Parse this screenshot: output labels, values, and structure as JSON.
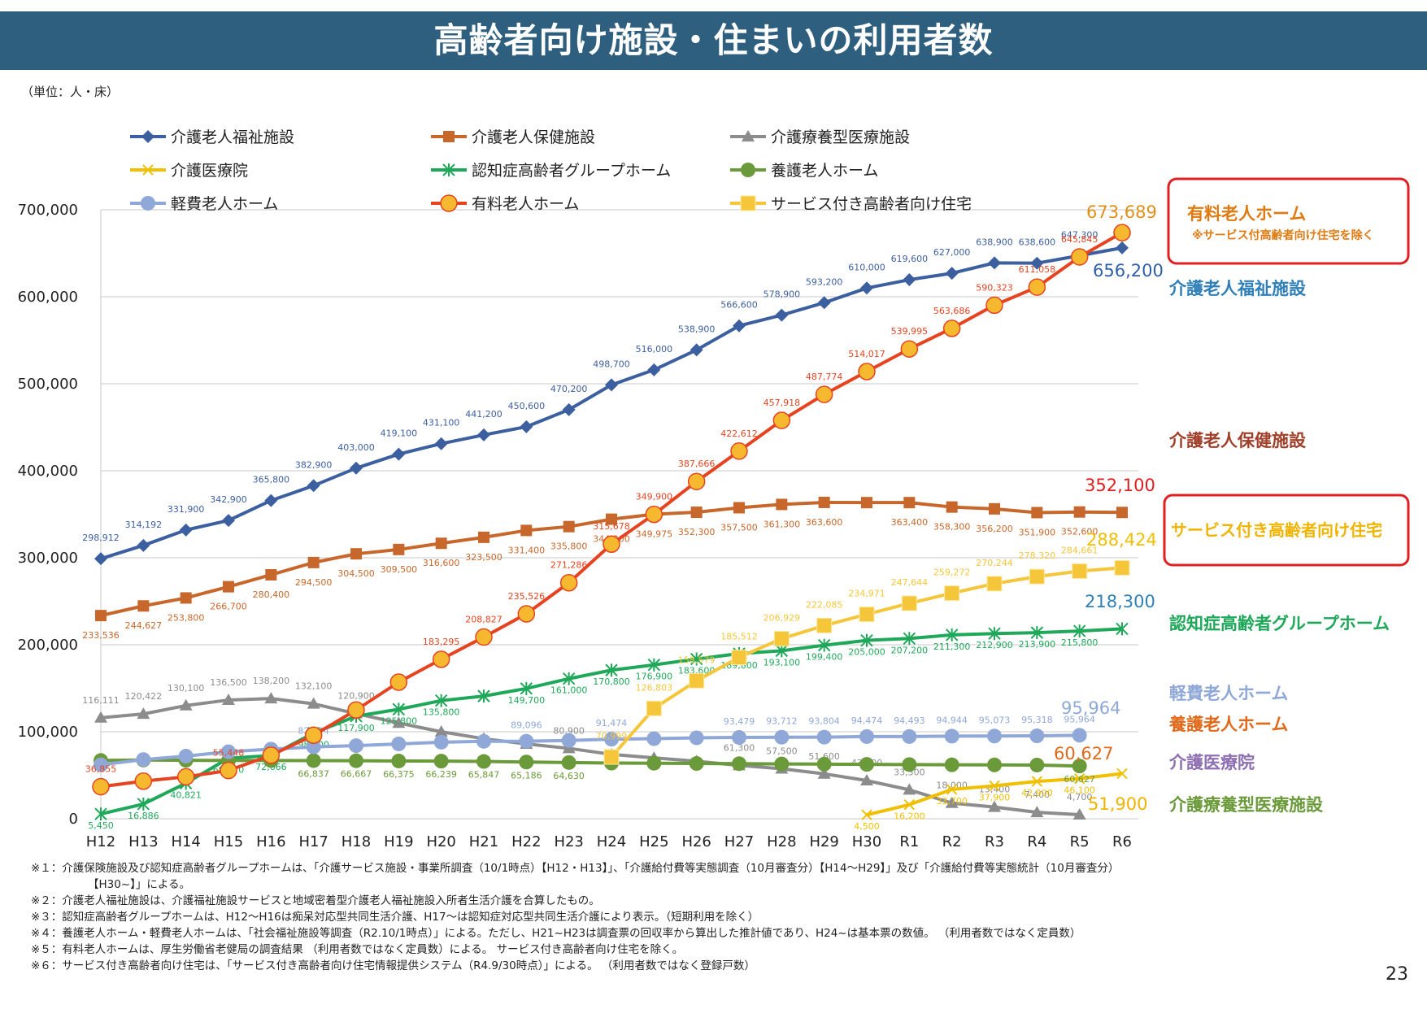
{
  "page": {
    "title": "高齢者向け施設・住まいの利用者数",
    "unit": "（単位：人・床）",
    "page_number": "23",
    "footnotes": [
      "※１：介護保険施設及び認知症高齢者グループホームは、「介護サービス施設・事業所調査（10/1時点）【H12・H13】」、「介護給付費等実態調査（10月審査分）【H14～H29】」及び「介護給付費等実態統計（10月審査分）",
      "【H30~】」による。",
      "※２：介護老人福祉施設は、介護福祉施設サービスと地域密着型介護老人福祉施設入所者生活介護を合算したもの。",
      "※３：認知症高齢者グループホームは、H12～H16は痴呆対応型共同生活介護、H17～は認知症対応型共同生活介護により表示。（短期利用を除く）",
      "※４：養護老人ホーム・軽費老人ホームは、「社会福祉施設等調査（R2.10/1時点）」による。ただし、H21~H23は調査票の回収率から算出した推計値であり、H24~は基本票の数値。 （利用者数ではなく定員数）",
      "※５：有料老人ホームは、厚生労働省老健局の調査結果 （利用者数ではなく定員数）による。 サービス付き高齢者向け住宅を除く。",
      "※６：サービス付き高齢者向け住宅は、「サービス付き高齢者向け住宅情報提供システム（R4.9/30時点）」による。 （利用者数ではなく登録戸数）"
    ]
  },
  "chart_data": {
    "type": "line",
    "categories": [
      "H12",
      "H13",
      "H14",
      "H15",
      "H16",
      "H17",
      "H18",
      "H19",
      "H20",
      "H21",
      "H22",
      "H23",
      "H24",
      "H25",
      "H26",
      "H27",
      "H28",
      "H29",
      "H30",
      "R1",
      "R2",
      "R3",
      "R4",
      "R5",
      "R6"
    ],
    "ylim": [
      0,
      700000
    ],
    "yticks": [
      0,
      100000,
      200000,
      300000,
      400000,
      500000,
      600000,
      700000
    ],
    "ytick_labels": [
      "0",
      "100,000",
      "200,000",
      "300,000",
      "400,000",
      "500,000",
      "600,000",
      "700,000"
    ],
    "grid": true,
    "legend_position": "top",
    "series": [
      {
        "name": "介護老人福祉施設",
        "color": "#3c5fa0",
        "marker": "diamond",
        "values": [
          298912,
          314192,
          331900,
          342900,
          365800,
          382900,
          403000,
          419100,
          431100,
          441200,
          450600,
          470200,
          498700,
          516000,
          538900,
          566600,
          578900,
          593200,
          610000,
          619600,
          627000,
          638900,
          638600,
          647300,
          656200
        ],
        "labels": [
          "298,912",
          "314,192",
          "331,900",
          "342,900",
          "365,800",
          "382,900",
          "403,000",
          "419,100",
          "431,100",
          "441,200",
          "450,600",
          "470,200",
          "498,700",
          "516,000",
          "538,900",
          "566,600",
          "578,900",
          "593,200",
          "610,000",
          "619,600",
          "627,000",
          "638,900",
          "638,600",
          "647,300",
          "656,200"
        ]
      },
      {
        "name": "介護老人保健施設",
        "color": "#c8672b",
        "marker": "square",
        "values": [
          233536,
          244627,
          253800,
          266700,
          280400,
          294500,
          304500,
          309500,
          316600,
          323500,
          331400,
          335800,
          344300,
          349975,
          352300,
          357500,
          361300,
          363600,
          363400,
          363400,
          358300,
          356200,
          351900,
          352600,
          352100
        ],
        "labels": [
          "233,536",
          "244,627",
          "253,800",
          "266,700",
          "280,400",
          "294,500",
          "304,500",
          "309,500",
          "316,600",
          "323,500",
          "331,400",
          "335,800",
          "344,300",
          "349,975",
          "352,300",
          "357,500",
          "361,300",
          "363,600",
          "",
          "363,400",
          "358,300",
          "356,200",
          "351,900",
          "352,600",
          "352,100"
        ]
      },
      {
        "name": "介護療養型医療施設",
        "color": "#8c8c8c",
        "marker": "triangle",
        "values": [
          116111,
          120422,
          130100,
          136500,
          138200,
          132100,
          120900,
          110000,
          100000,
          92000,
          86000,
          80900,
          74000,
          70000,
          66100,
          61300,
          57500,
          51600,
          43900,
          33300,
          18000,
          13400,
          7400,
          4700,
          null
        ],
        "labels": [
          "116,111",
          "120,422",
          "130,100",
          "136,500",
          "138,200",
          "132,100",
          "120,900",
          "",
          "",
          "",
          "",
          "80,900",
          "",
          "",
          "",
          "61,300",
          "57,500",
          "51,600",
          "43,900",
          "33,300",
          "18,000",
          "13,400",
          "7,400",
          "4,700",
          ""
        ]
      },
      {
        "name": "介護医療院",
        "color": "#f0c000",
        "marker": "x",
        "values": [
          null,
          null,
          null,
          null,
          null,
          null,
          null,
          null,
          null,
          null,
          null,
          null,
          null,
          null,
          null,
          null,
          null,
          null,
          4500,
          16200,
          33700,
          37900,
          42900,
          46100,
          51900
        ],
        "labels": [
          "",
          "",
          "",
          "",
          "",
          "",
          "",
          "",
          "",
          "",
          "",
          "",
          "",
          "",
          "",
          "",
          "",
          "",
          "4,500",
          "16,200",
          "33,700",
          "37,900",
          "42,900",
          "46,100",
          "51,900"
        ]
      },
      {
        "name": "認知症高齢者グループホーム",
        "color": "#1fa859",
        "marker": "star",
        "values": [
          5450,
          16886,
          40821,
          69570,
          72666,
          98500,
          117900,
          125800,
          135800,
          141000,
          149700,
          161000,
          170800,
          176900,
          183600,
          189800,
          193100,
          199400,
          205000,
          207200,
          211300,
          212900,
          213900,
          215800,
          218300
        ],
        "labels": [
          "5,450",
          "16,886",
          "40,821",
          "69,570",
          "72,666",
          "98,500",
          "117,900",
          "125,800",
          "135,800",
          "",
          "149,700",
          "161,000",
          "170,800",
          "176,900",
          "183,600",
          "189,800",
          "193,100",
          "199,400",
          "205,000",
          "207,200",
          "211,300",
          "212,900",
          "213,900",
          "215,800",
          "218,300"
        ]
      },
      {
        "name": "養護老人ホーム",
        "color": "#6b9a3a",
        "marker": "circle",
        "values": [
          67000,
          67500,
          67200,
          67000,
          66900,
          66837,
          66667,
          66375,
          66239,
          65847,
          65186,
          64630,
          64000,
          63800,
          63500,
          63300,
          63000,
          62800,
          62500,
          62300,
          62000,
          61900,
          61700,
          60627,
          null
        ],
        "labels": [
          "",
          "",
          "",
          "",
          "",
          "66,837",
          "66,667",
          "66,375",
          "66,239",
          "65,847",
          "65,186",
          "64,630",
          "",
          "",
          "",
          "",
          "",
          "",
          "",
          "",
          "",
          "",
          "",
          "60,627",
          ""
        ]
      },
      {
        "name": "軽費老人ホーム",
        "color": "#8fa8d8",
        "marker": "circle",
        "values": [
          62000,
          68000,
          72000,
          77000,
          80000,
          82594,
          84000,
          86000,
          88000,
          89000,
          89096,
          90000,
          91474,
          92000,
          93000,
          93479,
          93712,
          93804,
          94474,
          94493,
          94944,
          95073,
          95318,
          95964,
          null
        ],
        "labels": [
          "",
          "",
          "",
          "",
          "",
          "82,594",
          "",
          "",
          "",
          "",
          "89,096",
          "",
          "91,474",
          "",
          "",
          "93,479",
          "93,712",
          "93,804",
          "94,474",
          "94,493",
          "94,944",
          "95,073",
          "95,318",
          "95,964",
          ""
        ]
      },
      {
        "name": "有料老人ホーム",
        "color": "#e64420",
        "marker": "bigcircle",
        "values": [
          36855,
          43226,
          48196,
          55448,
          73000,
          96000,
          125000,
          157000,
          183295,
          208827,
          235526,
          271286,
          315678,
          349900,
          387666,
          422612,
          457918,
          487774,
          514017,
          539995,
          563686,
          590323,
          611058,
          645845,
          673689
        ],
        "labels": [
          "36,855",
          "",
          "",
          "55,448",
          "",
          "",
          "",
          "",
          "183,295",
          "208,827",
          "235,526",
          "271,286",
          "315,678",
          "349,900",
          "387,666",
          "422,612",
          "457,918",
          "487,774",
          "514,017",
          "539,995",
          "563,686",
          "590,323",
          "611,058",
          "645,845",
          "673,689"
        ]
      },
      {
        "name": "サービス付き高齢者向け住宅",
        "color": "#f6c63a",
        "marker": "bigsquare",
        "values": [
          null,
          null,
          null,
          null,
          null,
          null,
          null,
          null,
          null,
          null,
          null,
          null,
          70999,
          126803,
          158579,
          185512,
          206929,
          222085,
          234971,
          247644,
          259272,
          270244,
          278320,
          284661,
          288424
        ],
        "labels": [
          "",
          "",
          "",
          "",
          "",
          "",
          "",
          "",
          "",
          "",
          "",
          "",
          "70,999",
          "126,803",
          "158,579",
          "185,512",
          "206,929",
          "222,085",
          "234,971",
          "247,644",
          "259,272",
          "270,244",
          "278,320",
          "284,661",
          "288,424"
        ]
      }
    ],
    "right_labels": [
      {
        "text": "介護老人福祉施設",
        "color": "#2f7fb8"
      },
      {
        "text": "介護老人保健施設",
        "color": "#a0402a"
      },
      {
        "text": "認知症高齢者グループホーム",
        "color": "#1fa859"
      },
      {
        "text": "軽費老人ホーム",
        "color": "#8fa8d8"
      },
      {
        "text": "養護老人ホーム",
        "color": "#e06a1a"
      },
      {
        "text": "介護医療院",
        "color": "#8e6fb3"
      },
      {
        "text": "介護療養型医療施設",
        "color": "#6b9a3a"
      }
    ],
    "callouts": [
      {
        "text": "有料老人ホーム",
        "sub": "※サービス付高齢者向け住宅を除く",
        "color": "#e07a10"
      },
      {
        "text": "サービス付き高齢者向け住宅",
        "sub": "",
        "color": "#f0b400"
      }
    ],
    "end_value_labels": [
      {
        "text": "673,689",
        "color": "#e0901a"
      },
      {
        "text": "656,200",
        "color": "#2f5fa8"
      },
      {
        "text": "352,100",
        "color": "#e02020"
      },
      {
        "text": "288,424",
        "color": "#f0c000"
      },
      {
        "text": "218,300",
        "color": "#2f7fb8"
      },
      {
        "text": "95,964",
        "color": "#8fa8d8"
      },
      {
        "text": "60,627",
        "color": "#e06a1a"
      },
      {
        "text": "51,900",
        "color": "#f0b400"
      }
    ]
  }
}
